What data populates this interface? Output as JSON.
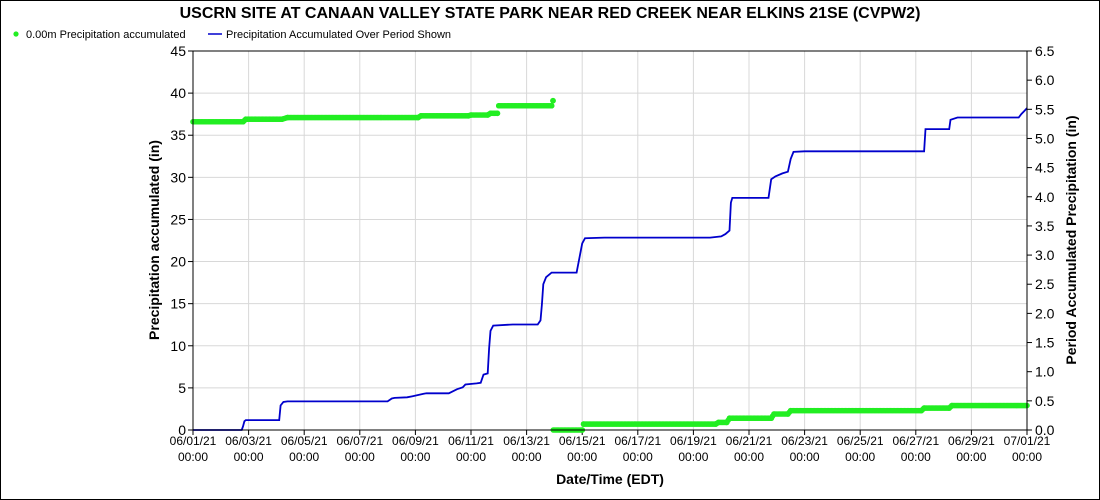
{
  "chart_data": {
    "type": "line",
    "title": "USCRN SITE AT CANAAN VALLEY STATE PARK NEAR RED CREEK NEAR ELKINS 21SE (CVPW2)",
    "xlabel": "Date/Time (EDT)",
    "ylabel_left": "Precipitation accumulated (in)",
    "ylabel_right": "Period Accumulated Precipitation (in)",
    "xlim": [
      "06/01/21 00:00",
      "07/01/21 00:00"
    ],
    "ylim_left": [
      0,
      45
    ],
    "ylim_right": [
      0,
      6.5
    ],
    "y_ticks_left": [
      "0",
      "5",
      "10",
      "15",
      "20",
      "25",
      "30",
      "35",
      "40",
      "45"
    ],
    "y_ticks_right": [
      "0.0",
      "0.5",
      "1.0",
      "1.5",
      "2.0",
      "2.5",
      "3.0",
      "3.5",
      "4.0",
      "4.5",
      "5.0",
      "5.5",
      "6.0",
      "6.5"
    ],
    "x_ticks": [
      {
        "day": 0,
        "date": "06/01/21",
        "time": "00:00"
      },
      {
        "day": 2,
        "date": "06/03/21",
        "time": "00:00"
      },
      {
        "day": 4,
        "date": "06/05/21",
        "time": "00:00"
      },
      {
        "day": 6,
        "date": "06/07/21",
        "time": "00:00"
      },
      {
        "day": 8,
        "date": "06/09/21",
        "time": "00:00"
      },
      {
        "day": 10,
        "date": "06/11/21",
        "time": "00:00"
      },
      {
        "day": 12,
        "date": "06/13/21",
        "time": "00:00"
      },
      {
        "day": 14,
        "date": "06/15/21",
        "time": "00:00"
      },
      {
        "day": 16,
        "date": "06/17/21",
        "time": "00:00"
      },
      {
        "day": 18,
        "date": "06/19/21",
        "time": "00:00"
      },
      {
        "day": 20,
        "date": "06/21/21",
        "time": "00:00"
      },
      {
        "day": 22,
        "date": "06/23/21",
        "time": "00:00"
      },
      {
        "day": 24,
        "date": "06/25/21",
        "time": "00:00"
      },
      {
        "day": 26,
        "date": "06/27/21",
        "time": "00:00"
      },
      {
        "day": 28,
        "date": "06/29/21",
        "time": "00:00"
      },
      {
        "day": 30,
        "date": "07/01/21",
        "time": "00:00"
      }
    ],
    "legend_position": "top-left",
    "series": [
      {
        "name": "0.00m Precipitation accumulated",
        "axis": "left",
        "style": "dots",
        "color": "#22ee22",
        "points": [
          [
            0.0,
            36.6
          ],
          [
            1.8,
            36.6
          ],
          [
            1.9,
            36.9
          ],
          [
            3.2,
            36.9
          ],
          [
            3.4,
            37.1
          ],
          [
            8.1,
            37.1
          ],
          [
            8.2,
            37.3
          ],
          [
            9.9,
            37.3
          ],
          [
            10.0,
            37.4
          ],
          [
            10.6,
            37.4
          ],
          [
            10.7,
            37.6
          ],
          [
            10.95,
            37.6
          ],
          [
            11.0,
            38.5
          ],
          [
            12.9,
            38.5
          ],
          [
            12.95,
            39.1
          ],
          [
            12.96,
            0.0
          ],
          [
            14.0,
            0.0
          ],
          [
            14.05,
            0.7
          ],
          [
            18.8,
            0.7
          ],
          [
            18.9,
            0.9
          ],
          [
            19.2,
            0.9
          ],
          [
            19.3,
            1.4
          ],
          [
            20.8,
            1.4
          ],
          [
            20.9,
            1.9
          ],
          [
            21.4,
            1.9
          ],
          [
            21.5,
            2.3
          ],
          [
            26.2,
            2.3
          ],
          [
            26.3,
            2.6
          ],
          [
            27.2,
            2.6
          ],
          [
            27.3,
            2.9
          ],
          [
            30.0,
            2.9
          ]
        ]
      },
      {
        "name": "Precipitation Accumulated Over Period Shown",
        "axis": "right",
        "style": "step-line",
        "color": "#0000cc",
        "points": [
          [
            0.0,
            0.0
          ],
          [
            1.75,
            0.0
          ],
          [
            1.8,
            0.06
          ],
          [
            1.85,
            0.15
          ],
          [
            1.9,
            0.17
          ],
          [
            3.1,
            0.17
          ],
          [
            3.15,
            0.42
          ],
          [
            3.25,
            0.48
          ],
          [
            3.4,
            0.49
          ],
          [
            7.0,
            0.49
          ],
          [
            7.15,
            0.54
          ],
          [
            7.25,
            0.55
          ],
          [
            7.7,
            0.56
          ],
          [
            7.9,
            0.58
          ],
          [
            8.3,
            0.62
          ],
          [
            8.4,
            0.63
          ],
          [
            9.2,
            0.63
          ],
          [
            9.5,
            0.7
          ],
          [
            9.7,
            0.73
          ],
          [
            9.8,
            0.78
          ],
          [
            10.2,
            0.8
          ],
          [
            10.35,
            0.81
          ],
          [
            10.45,
            0.95
          ],
          [
            10.6,
            0.97
          ],
          [
            10.65,
            1.4
          ],
          [
            10.7,
            1.7
          ],
          [
            10.8,
            1.79
          ],
          [
            11.5,
            1.81
          ],
          [
            12.4,
            1.81
          ],
          [
            12.5,
            1.88
          ],
          [
            12.55,
            2.15
          ],
          [
            12.6,
            2.5
          ],
          [
            12.7,
            2.62
          ],
          [
            12.9,
            2.7
          ],
          [
            13.8,
            2.7
          ],
          [
            13.9,
            2.95
          ],
          [
            14.0,
            3.2
          ],
          [
            14.1,
            3.29
          ],
          [
            14.8,
            3.3
          ],
          [
            18.6,
            3.3
          ],
          [
            19.0,
            3.32
          ],
          [
            19.15,
            3.36
          ],
          [
            19.3,
            3.42
          ],
          [
            19.35,
            3.9
          ],
          [
            19.4,
            3.98
          ],
          [
            20.7,
            3.98
          ],
          [
            20.8,
            4.3
          ],
          [
            20.95,
            4.35
          ],
          [
            21.2,
            4.4
          ],
          [
            21.4,
            4.43
          ],
          [
            21.5,
            4.65
          ],
          [
            21.6,
            4.77
          ],
          [
            22.0,
            4.78
          ],
          [
            26.3,
            4.78
          ],
          [
            26.35,
            5.16
          ],
          [
            27.2,
            5.16
          ],
          [
            27.25,
            5.32
          ],
          [
            27.5,
            5.36
          ],
          [
            29.0,
            5.36
          ],
          [
            29.7,
            5.36
          ],
          [
            29.8,
            5.42
          ],
          [
            29.9,
            5.47
          ],
          [
            30.0,
            5.52
          ]
        ]
      }
    ]
  }
}
